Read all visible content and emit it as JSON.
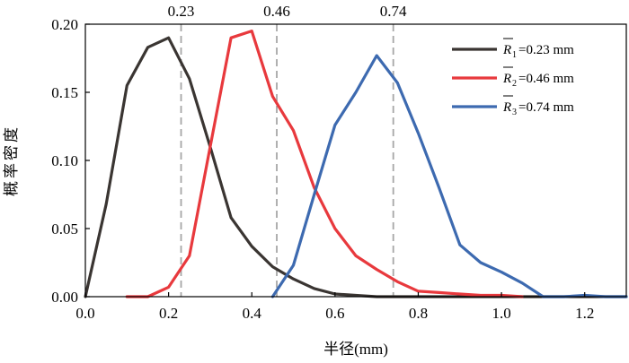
{
  "chart_data": {
    "type": "line",
    "xlabel": "半径(mm)",
    "ylabel": "概率密度",
    "xlim": [
      0,
      1.3
    ],
    "ylim": [
      0,
      0.2
    ],
    "xticks": [
      "0.0",
      "0.2",
      "0.4",
      "0.6",
      "0.8",
      "1.0",
      "1.2"
    ],
    "yticks": [
      "0.00",
      "0.05",
      "0.10",
      "0.15",
      "0.20"
    ],
    "xtick_values": [
      0,
      0.2,
      0.4,
      0.6,
      0.8,
      1.0,
      1.2
    ],
    "ytick_values": [
      0,
      0.05,
      0.1,
      0.15,
      0.2
    ],
    "grid": false,
    "legend_position": "top-right",
    "reference_lines": [
      {
        "x": 0.23,
        "label": "0.23"
      },
      {
        "x": 0.46,
        "label": "0.46"
      },
      {
        "x": 0.74,
        "label": "0.74"
      }
    ],
    "series": [
      {
        "symbol": "R",
        "subscript": "1",
        "value_text": "=0.23 mm",
        "color": "#3a3532",
        "points": [
          [
            0,
            0
          ],
          [
            0.05,
            0.068
          ],
          [
            0.1,
            0.155
          ],
          [
            0.15,
            0.183
          ],
          [
            0.2,
            0.19
          ],
          [
            0.25,
            0.16
          ],
          [
            0.3,
            0.11
          ],
          [
            0.35,
            0.058
          ],
          [
            0.4,
            0.037
          ],
          [
            0.45,
            0.022
          ],
          [
            0.5,
            0.013
          ],
          [
            0.55,
            0.006
          ],
          [
            0.6,
            0.002
          ],
          [
            0.65,
            0.001
          ],
          [
            0.7,
            0
          ],
          [
            0.8,
            0
          ],
          [
            0.9,
            0
          ],
          [
            1.0,
            0
          ],
          [
            1.1,
            0
          ],
          [
            1.2,
            0
          ],
          [
            1.3,
            0
          ]
        ]
      },
      {
        "symbol": "R",
        "subscript": "2",
        "value_text": "=0.46 mm",
        "color": "#e8393d",
        "points": [
          [
            0.1,
            0
          ],
          [
            0.15,
            0
          ],
          [
            0.2,
            0.007
          ],
          [
            0.25,
            0.03
          ],
          [
            0.3,
            0.11
          ],
          [
            0.35,
            0.19
          ],
          [
            0.4,
            0.195
          ],
          [
            0.45,
            0.147
          ],
          [
            0.5,
            0.122
          ],
          [
            0.55,
            0.08
          ],
          [
            0.6,
            0.05
          ],
          [
            0.65,
            0.03
          ],
          [
            0.7,
            0.02
          ],
          [
            0.75,
            0.011
          ],
          [
            0.8,
            0.004
          ],
          [
            0.85,
            0.003
          ],
          [
            0.9,
            0.002
          ],
          [
            0.95,
            0.001
          ],
          [
            1.0,
            0.001
          ],
          [
            1.05,
            0
          ]
        ]
      },
      {
        "symbol": "R",
        "subscript": "3",
        "value_text": "=0.74 mm",
        "color": "#3d6ab0",
        "points": [
          [
            0.45,
            0
          ],
          [
            0.5,
            0.023
          ],
          [
            0.55,
            0.075
          ],
          [
            0.6,
            0.126
          ],
          [
            0.65,
            0.15
          ],
          [
            0.7,
            0.177
          ],
          [
            0.75,
            0.157
          ],
          [
            0.8,
            0.12
          ],
          [
            0.85,
            0.08
          ],
          [
            0.9,
            0.038
          ],
          [
            0.95,
            0.025
          ],
          [
            1.0,
            0.018
          ],
          [
            1.05,
            0.01
          ],
          [
            1.1,
            0
          ],
          [
            1.15,
            0
          ],
          [
            1.2,
            0.001
          ],
          [
            1.25,
            0
          ],
          [
            1.3,
            0
          ]
        ]
      }
    ]
  }
}
